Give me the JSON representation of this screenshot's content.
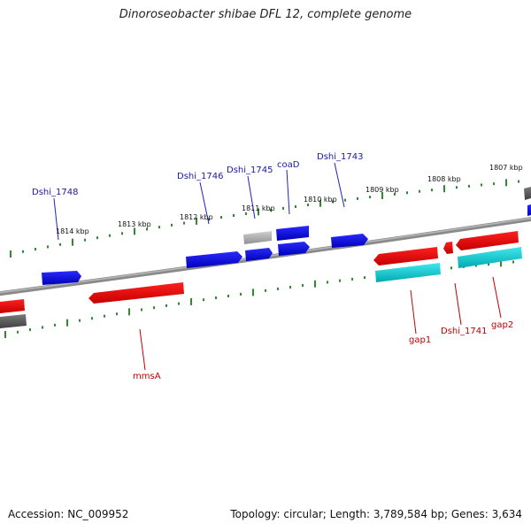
{
  "title": "Dinoroseobacter shibae DFL 12, complete genome",
  "footer": {
    "accession": "Accession: NC_009952",
    "summary": "Topology: circular; Length: 3,789,584 bp; Genes: 3,634"
  },
  "colors": {
    "forward_gene": "#0000e0",
    "reverse_gene": "#e00000",
    "rna_gene": "#00c8d0",
    "pseudo_gene": "#a0a0a0",
    "backbone": "#7a7a7a",
    "ticks": "#2e8b2e",
    "label_forward": "#1a1aa0",
    "label_reverse": "#c00000"
  },
  "scale_labels": [
    "1807 kbp",
    "1808 kbp",
    "1809 kbp",
    "1810 kbp",
    "1811 kbp",
    "1812 kbp",
    "1813 kbp",
    "1814 kbp"
  ],
  "forward_labels": [
    "Dshi_1743",
    "coaD",
    "Dshi_1745",
    "Dshi_1746",
    "Dshi_1748"
  ],
  "reverse_labels": [
    "gap2",
    "Dshi_1741",
    "gap1",
    "mmsA"
  ]
}
